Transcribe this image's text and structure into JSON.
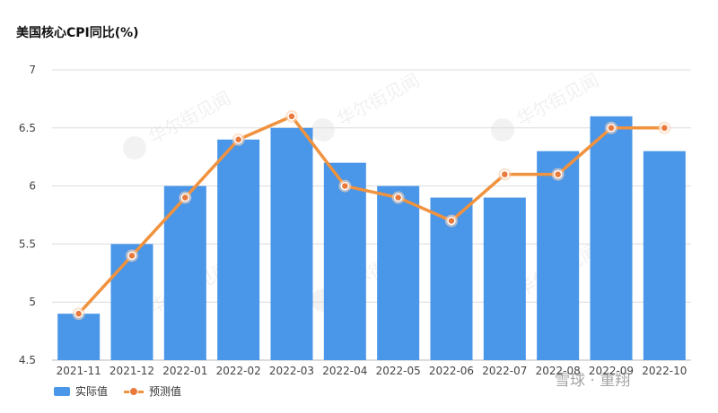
{
  "title": "美国核心CPI同比(%)",
  "colors": {
    "bar": "#4a96e8",
    "line": "#f0923e",
    "marker_fill": "#ea7a3c",
    "marker_halo": "#fbd3b4",
    "grid": "#dcdcdc",
    "axis_text": "#444444"
  },
  "watermark": "华尔街见闻",
  "corner_watermark": "雪球 · 重翔",
  "chart_data": {
    "type": "bar",
    "categories": [
      "2021-11",
      "2021-12",
      "2022-01",
      "2022-02",
      "2022-03",
      "2022-04",
      "2022-05",
      "2022-06",
      "2022-07",
      "2022-08",
      "2022-09",
      "2022-10"
    ],
    "series": [
      {
        "name": "实际值",
        "type": "bar",
        "values": [
          4.9,
          5.5,
          6.0,
          6.4,
          6.5,
          6.2,
          6.0,
          5.9,
          5.9,
          6.3,
          6.6,
          6.3
        ]
      },
      {
        "name": "预测值",
        "type": "line",
        "values": [
          4.9,
          5.4,
          5.9,
          6.4,
          6.6,
          6.0,
          5.9,
          5.7,
          6.1,
          6.1,
          6.5,
          6.5
        ]
      }
    ],
    "ylim": [
      4.5,
      7
    ],
    "yticks": [
      "4.5",
      "5",
      "5.5",
      "6",
      "6.5",
      "7"
    ],
    "grid": true,
    "legend_position": "bottom-left"
  }
}
